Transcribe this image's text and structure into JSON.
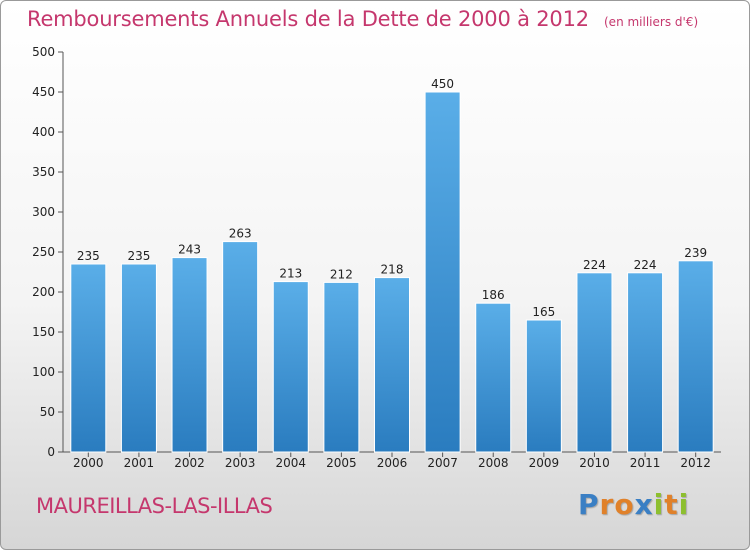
{
  "header": {
    "title": "Remboursements Annuels de la Dette de 2000 à 2012",
    "unit": "(en milliers d'€)"
  },
  "footer": {
    "commune": "MAUREILLAS-LAS-ILLAS",
    "logo_text": "Proxiti"
  },
  "colors": {
    "title": "#c5376d",
    "bar_top": "#5aaee8",
    "bar_bottom": "#2a7cbf",
    "axis": "#555555"
  },
  "chart_data": {
    "type": "bar",
    "title": "Remboursements Annuels de la Dette de 2000 à 2012",
    "xlabel": "",
    "ylabel": "",
    "categories": [
      "2000",
      "2001",
      "2002",
      "2003",
      "2004",
      "2005",
      "2006",
      "2007",
      "2008",
      "2009",
      "2010",
      "2011",
      "2012"
    ],
    "values": [
      235,
      235,
      243,
      263,
      213,
      212,
      218,
      450,
      186,
      165,
      224,
      224,
      239
    ],
    "ylim": [
      0,
      500
    ],
    "yticks": [
      0,
      50,
      100,
      150,
      200,
      250,
      300,
      350,
      400,
      450,
      500
    ],
    "grid": false,
    "data_labels": true
  }
}
